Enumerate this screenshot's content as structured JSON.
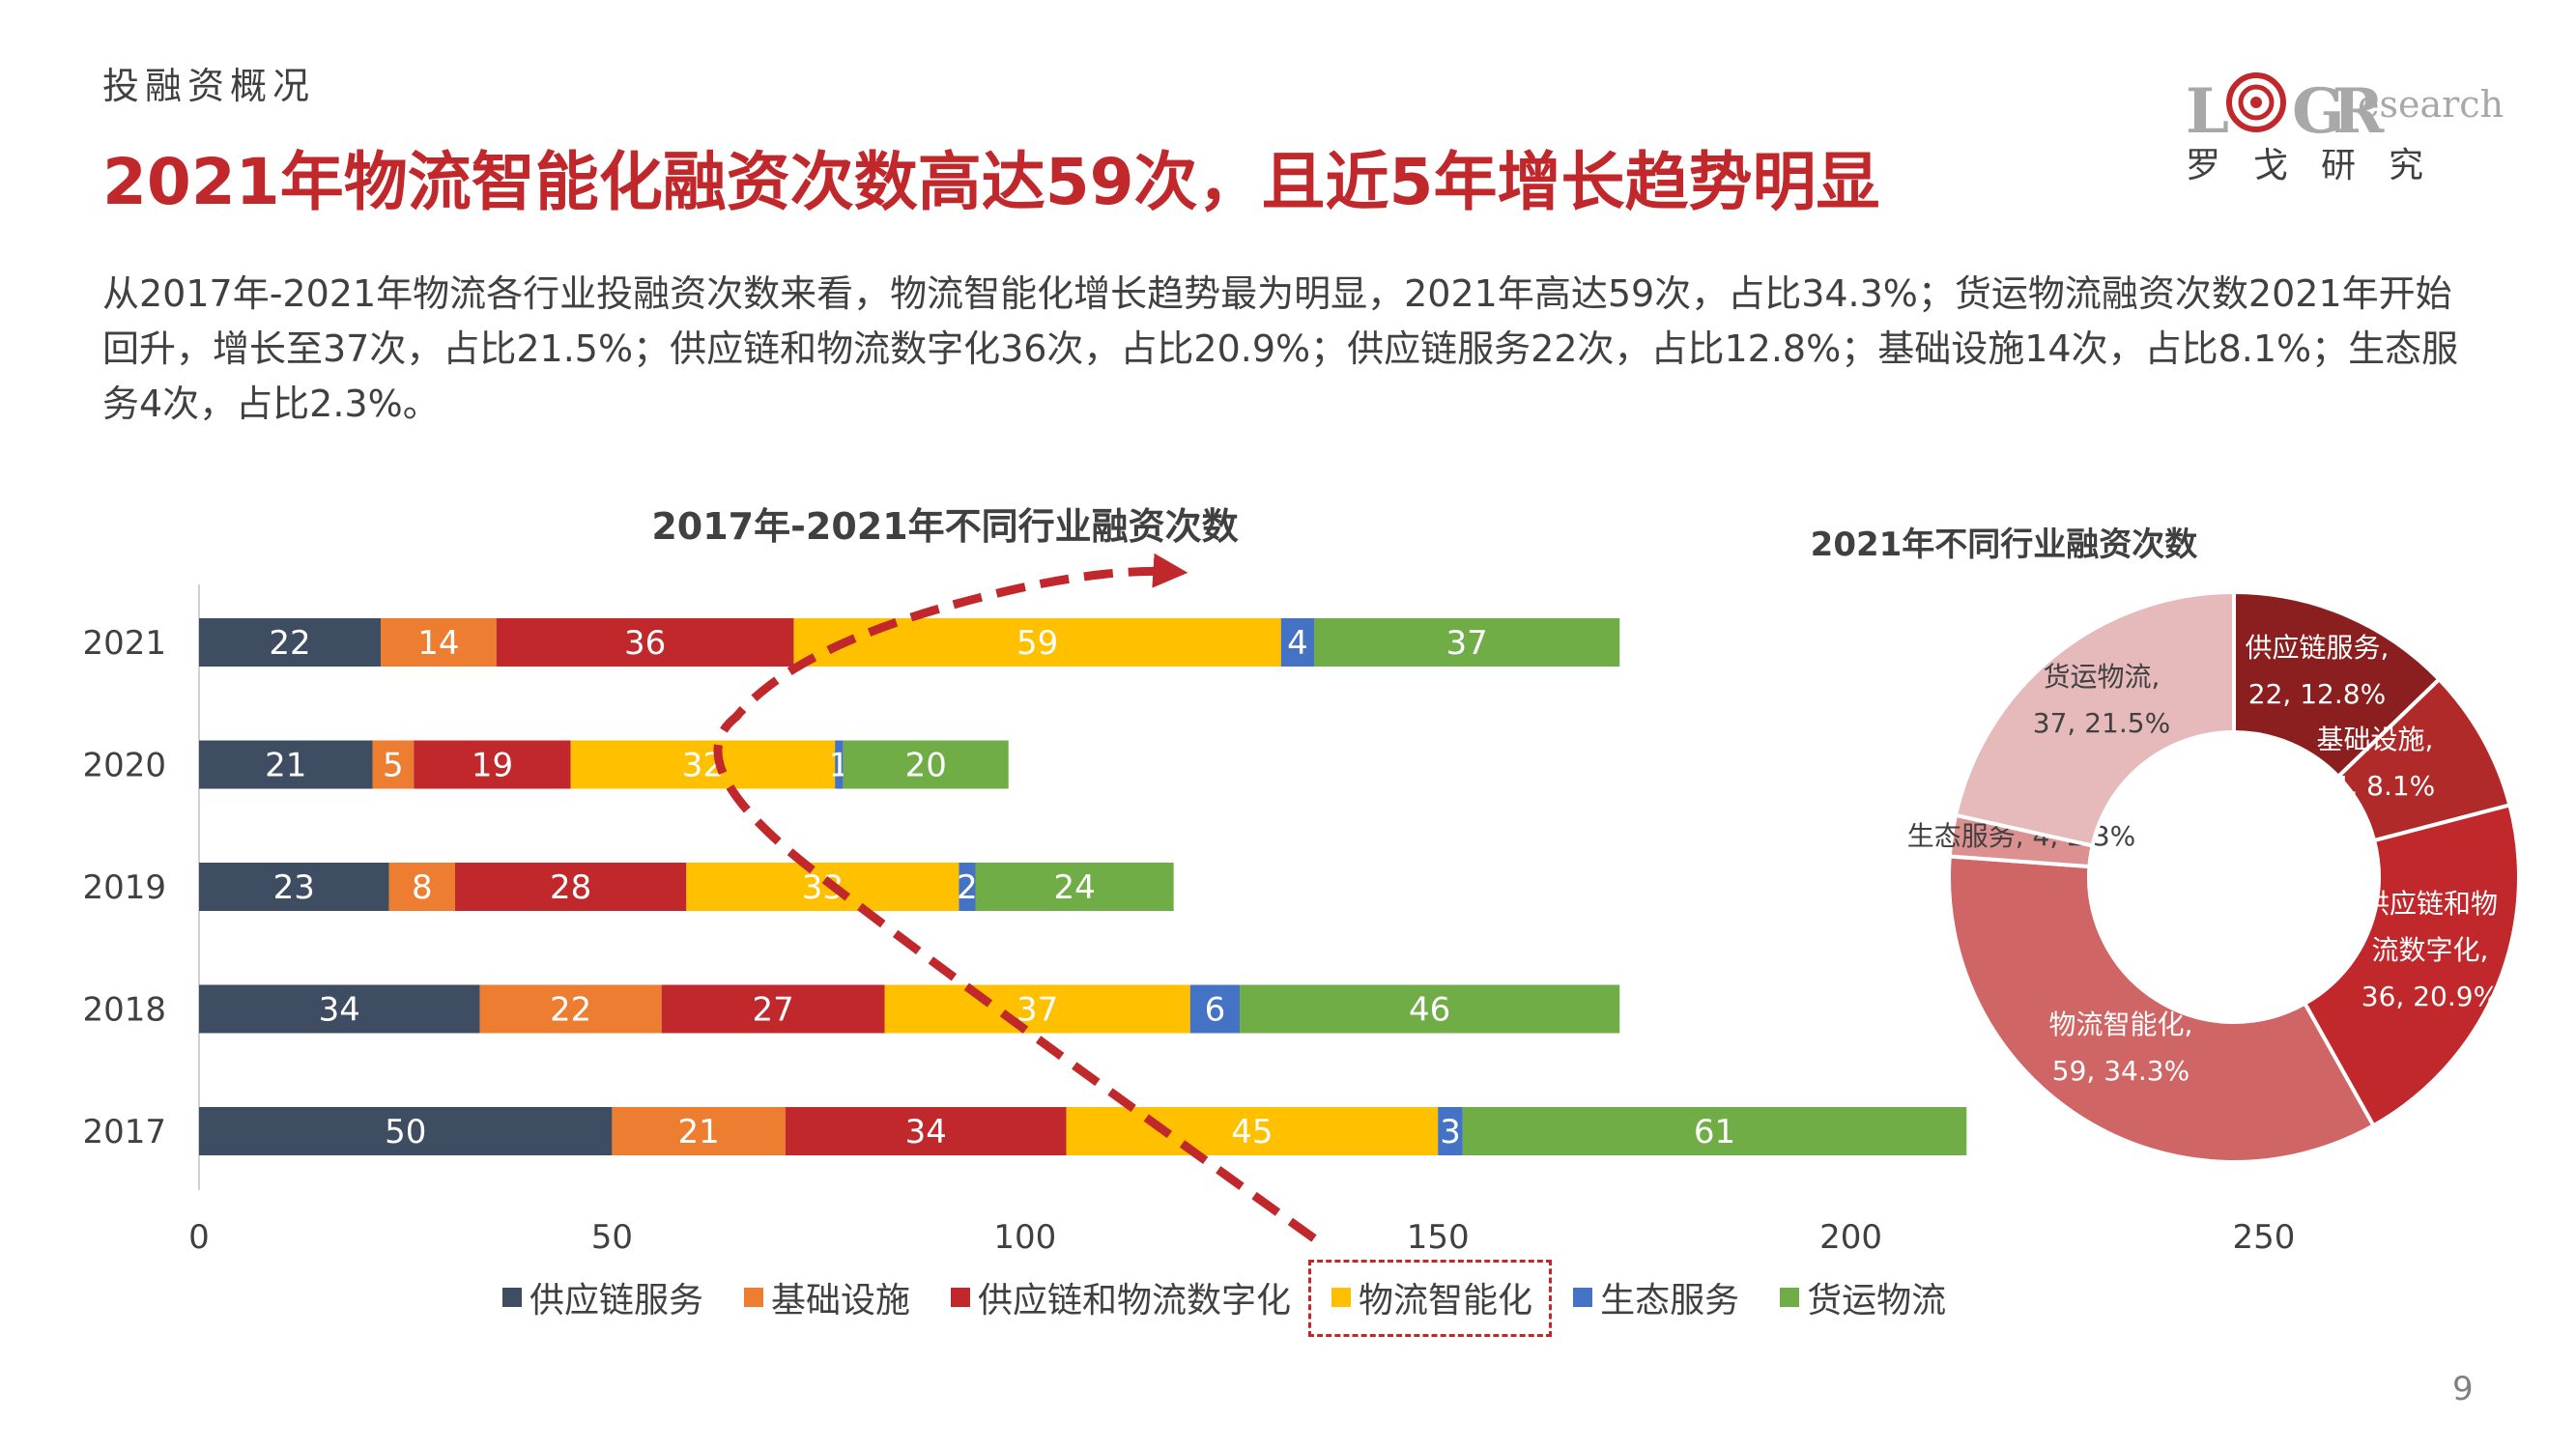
{
  "header": {
    "section_label": "投融资概况",
    "headline": "2021年物流智能化融资次数高达59次，且近5年增长趋势明显",
    "summary": "从2017年-2021年物流各行业投融资次数来看，物流智能化增长趋势最为明显，2021年高达59次，占比34.3%；货运物流融资次数2021年开始回升，增长至37次，占比21.5%；供应链和物流数字化36次，占比20.9%；供应链服务22次，占比12.8%；基础设施14次，占比8.1%；生态服务4次，占比2.3%。"
  },
  "logo": {
    "letter_l": "L",
    "letter_g": "G",
    "letter_r": "R",
    "research": "esearch",
    "cn_name": "罗戈研究"
  },
  "page_number": "9",
  "colors": {
    "supply_chain_service": "#3e4d61",
    "infrastructure": "#ed7d31",
    "digitalization": "#c0282b",
    "intelligent": "#ffc000",
    "ecology": "#4472c4",
    "freight": "#70ad47",
    "accent_red": "#c0282b"
  },
  "legend": [
    {
      "label": "供应链服务",
      "color": "#3e4d61",
      "highlight": false
    },
    {
      "label": "基础设施",
      "color": "#ed7d31",
      "highlight": false
    },
    {
      "label": "供应链和物流数字化",
      "color": "#c0282b",
      "highlight": false
    },
    {
      "label": "物流智能化",
      "color": "#ffc000",
      "highlight": true
    },
    {
      "label": "生态服务",
      "color": "#4472c4",
      "highlight": false
    },
    {
      "label": "货运物流",
      "color": "#70ad47",
      "highlight": false
    }
  ],
  "chart_data": [
    {
      "type": "bar",
      "orientation": "horizontal",
      "stacked": true,
      "title": "2017年-2021年不同行业融资次数",
      "categories": [
        "2021",
        "2020",
        "2019",
        "2018",
        "2017"
      ],
      "xlim": [
        0,
        250
      ],
      "xticks": [
        "0",
        "50",
        "100",
        "150",
        "200",
        "250"
      ],
      "series": [
        {
          "name": "供应链服务",
          "color": "#3e4d61",
          "values": [
            22,
            21,
            23,
            34,
            50
          ]
        },
        {
          "name": "基础设施",
          "color": "#ed7d31",
          "values": [
            14,
            5,
            8,
            22,
            21
          ]
        },
        {
          "name": "供应链和物流数字化",
          "color": "#c0282b",
          "values": [
            36,
            19,
            28,
            27,
            34
          ]
        },
        {
          "name": "物流智能化",
          "color": "#ffc000",
          "values": [
            59,
            32,
            33,
            37,
            45
          ]
        },
        {
          "name": "生态服务",
          "color": "#4472c4",
          "values": [
            4,
            1,
            2,
            6,
            3
          ]
        },
        {
          "name": "货运物流",
          "color": "#70ad47",
          "values": [
            37,
            20,
            24,
            46,
            61
          ]
        }
      ],
      "legend_position": "bottom",
      "grid": false
    },
    {
      "type": "pie",
      "donut": true,
      "title": "2021年不同行业融资次数",
      "slices": [
        {
          "name": "供应链服务",
          "value": 22,
          "label_lines": [
            "供应链服务,",
            "22, 12.8%"
          ],
          "color": "#8b1e1e"
        },
        {
          "name": "基础设施",
          "value": 14,
          "label_lines": [
            "基础设施,",
            "14, 8.1%"
          ],
          "color": "#b02a2a"
        },
        {
          "name": "供应链和物流数字化",
          "value": 36,
          "label_lines": [
            "供应链和物",
            "流数字化,",
            "36, 20.9%"
          ],
          "color": "#c0282b"
        },
        {
          "name": "物流智能化",
          "value": 59,
          "label_lines": [
            "物流智能化,",
            "59, 34.3%"
          ],
          "color": "#d06565"
        },
        {
          "name": "生态服务",
          "value": 4,
          "label_lines": [
            "生态服务, 4, 2.3%"
          ],
          "color": "#dc9090"
        },
        {
          "name": "货运物流",
          "value": 37,
          "label_lines": [
            "货运物流,",
            "37, 21.5%"
          ],
          "color": "#e6b9bb"
        }
      ]
    }
  ]
}
